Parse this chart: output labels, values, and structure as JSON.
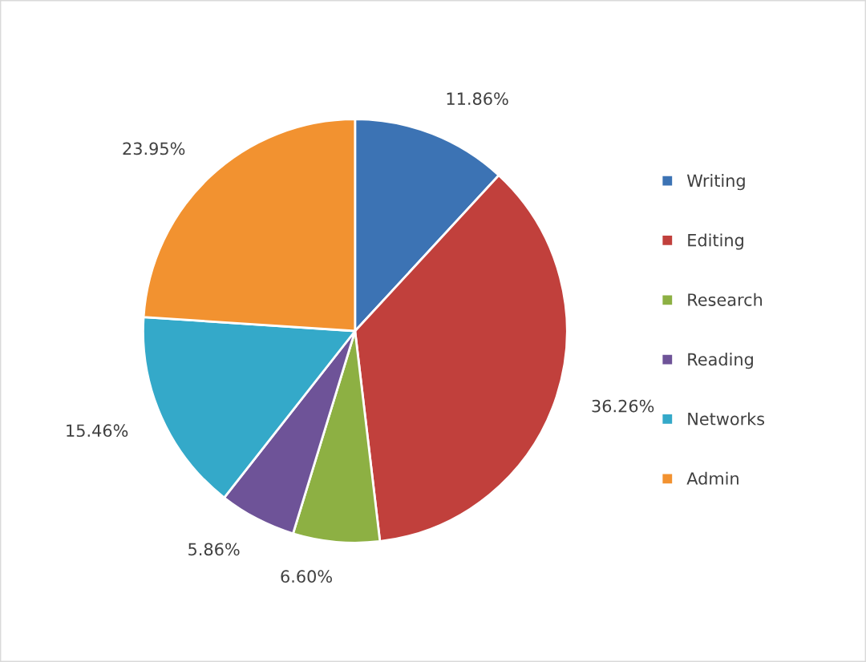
{
  "chart_data": {
    "type": "pie",
    "categories": [
      "Writing",
      "Editing",
      "Research",
      "Reading",
      "Networks",
      "Admin"
    ],
    "values": [
      11.86,
      36.26,
      6.6,
      5.86,
      15.46,
      23.95
    ],
    "value_labels": [
      "11.86%",
      "36.26%",
      "6.60%",
      "5.86%",
      "15.46%",
      "23.95%"
    ],
    "colors": [
      "#3c73b4",
      "#c1403c",
      "#8db043",
      "#6e5398",
      "#34a9c9",
      "#f29230"
    ],
    "legend": "right"
  }
}
